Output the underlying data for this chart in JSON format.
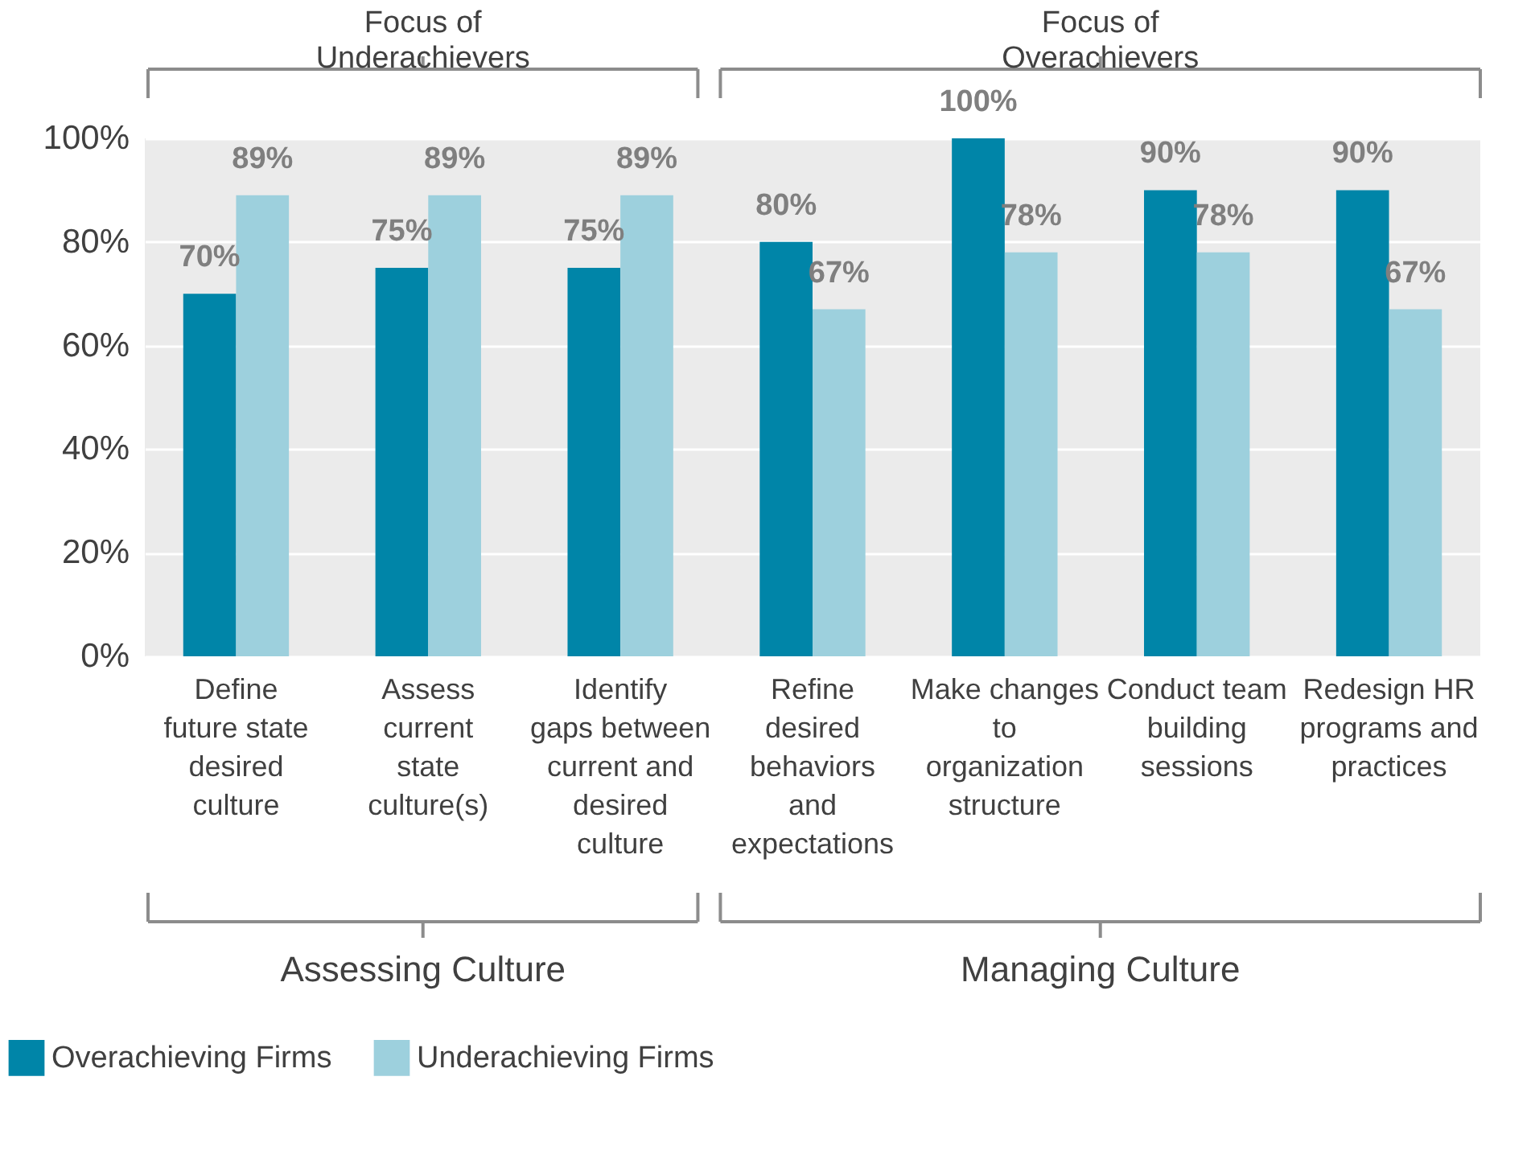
{
  "chart_data": {
    "type": "bar",
    "categories": [
      "Define future state desired culture",
      "Assess current state culture(s)",
      "Identify gaps between current and desired culture",
      "Refine desired behaviors and expectations",
      "Make changes to organization structure",
      "Conduct team building sessions",
      "Redesign HR programs and practices"
    ],
    "series": [
      {
        "name": "Overachieving Firms",
        "color": "#0085a8",
        "values": [
          70,
          75,
          75,
          80,
          100,
          90,
          90
        ],
        "value_labels": [
          "70%",
          "75%",
          "75%",
          "80%",
          "100%",
          "90%",
          "90%"
        ]
      },
      {
        "name": "Underachieving Firms",
        "color": "#9dd0dd",
        "values": [
          89,
          89,
          89,
          67,
          78,
          78,
          67
        ],
        "value_labels": [
          "89%",
          "89%",
          "89%",
          "67%",
          "78%",
          "78%",
          "67%"
        ]
      }
    ],
    "ylim": [
      0,
      100
    ],
    "yticks": [
      {
        "value": 0,
        "label": "0%"
      },
      {
        "value": 20,
        "label": "20%"
      },
      {
        "value": 40,
        "label": "40%"
      },
      {
        "value": 60,
        "label": "60%"
      },
      {
        "value": 80,
        "label": "80%"
      },
      {
        "value": 100,
        "label": "100%"
      }
    ],
    "grid": "y",
    "legend": "bottom left",
    "annotations": [
      "Focus of Underachievers",
      "Focus of Overachievers",
      "Assessing Culture",
      "Managing Culture"
    ]
  }
}
